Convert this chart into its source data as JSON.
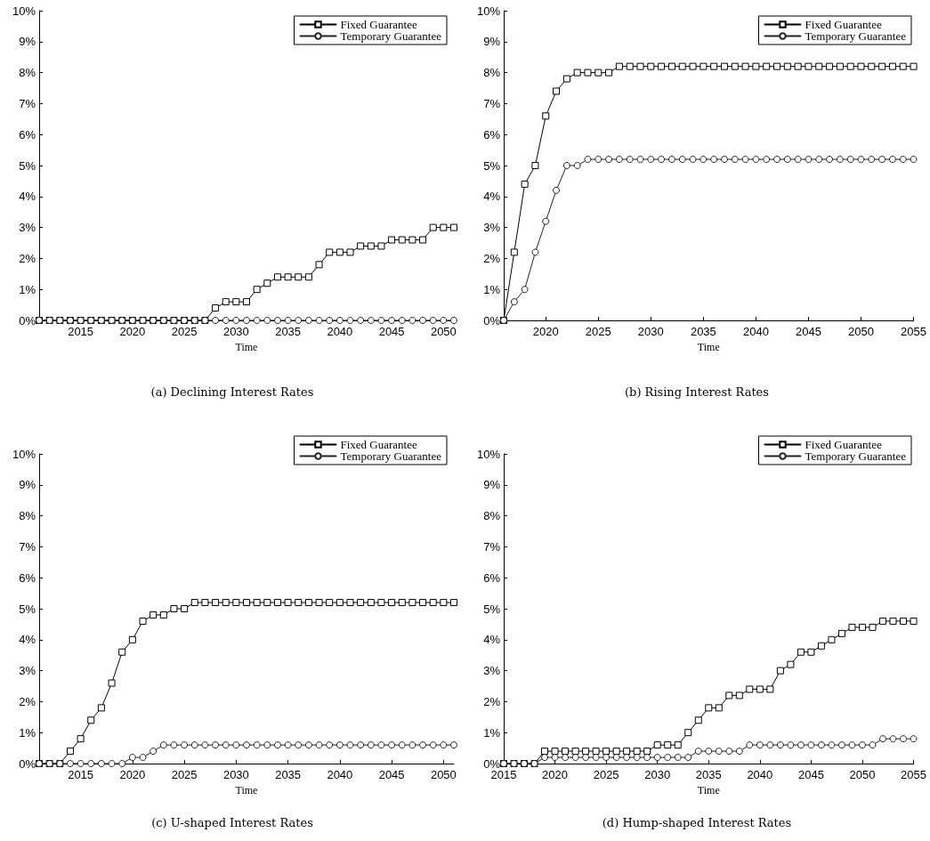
{
  "chart_data": [
    {
      "type": "line",
      "title": "(a) Declining Interest Rates",
      "xlabel": "Time",
      "legend": "top right",
      "grid": false,
      "line_style": "solid",
      "x": [
        2011,
        2012,
        2013,
        2014,
        2015,
        2016,
        2017,
        2018,
        2019,
        2020,
        2021,
        2022,
        2023,
        2024,
        2025,
        2026,
        2027,
        2028,
        2029,
        2030,
        2031,
        2032,
        2033,
        2034,
        2035,
        2036,
        2037,
        2038,
        2039,
        2040,
        2041,
        2042,
        2043,
        2044,
        2045,
        2046,
        2047,
        2048,
        2049,
        2050,
        2051
      ],
      "xlim": [
        2011,
        2051
      ],
      "xticks": [
        2015,
        2020,
        2025,
        2030,
        2035,
        2040,
        2045,
        2050
      ],
      "ylim": [
        0,
        10
      ],
      "yticks": [
        {
          "value": 0,
          "label": "0%"
        },
        {
          "value": 1,
          "label": "1%"
        },
        {
          "value": 2,
          "label": "2%"
        },
        {
          "value": 3,
          "label": "3%"
        },
        {
          "value": 4,
          "label": "4%"
        },
        {
          "value": 5,
          "label": "5%"
        },
        {
          "value": 6,
          "label": "6%"
        },
        {
          "value": 7,
          "label": "7%"
        },
        {
          "value": 8,
          "label": "8%"
        },
        {
          "value": 9,
          "label": "9%"
        },
        {
          "value": 10,
          "label": "10%"
        }
      ],
      "series": [
        {
          "name": "Fixed Guarantee",
          "color": "#000000",
          "marker": "square",
          "values": [
            0,
            0,
            0,
            0,
            0,
            0,
            0,
            0,
            0,
            0,
            0,
            0,
            0,
            0,
            0,
            0,
            0,
            0.4,
            0.6,
            0.6,
            0.6,
            1.0,
            1.2,
            1.4,
            1.4,
            1.4,
            1.4,
            1.8,
            2.2,
            2.2,
            2.2,
            2.4,
            2.4,
            2.4,
            2.6,
            2.6,
            2.6,
            2.6,
            3.0,
            3.0,
            3.0
          ]
        },
        {
          "name": "Temporary Guarantee",
          "color": "#222222",
          "marker": "circle",
          "values": [
            0,
            0,
            0,
            0,
            0,
            0,
            0,
            0,
            0,
            0,
            0,
            0,
            0,
            0,
            0,
            0,
            0,
            0,
            0,
            0,
            0,
            0,
            0,
            0,
            0,
            0,
            0,
            0,
            0,
            0,
            0,
            0,
            0,
            0,
            0,
            0,
            0,
            0,
            0,
            0,
            0
          ]
        }
      ]
    },
    {
      "type": "line",
      "title": "(b) Rising Interest Rates",
      "xlabel": "Time",
      "legend": "top right",
      "grid": false,
      "line_style": "solid",
      "x": [
        2016,
        2017,
        2018,
        2019,
        2020,
        2021,
        2022,
        2023,
        2024,
        2025,
        2026,
        2027,
        2028,
        2029,
        2030,
        2031,
        2032,
        2033,
        2034,
        2035,
        2036,
        2037,
        2038,
        2039,
        2040,
        2041,
        2042,
        2043,
        2044,
        2045,
        2046,
        2047,
        2048,
        2049,
        2050,
        2051,
        2052,
        2053,
        2054,
        2055
      ],
      "xlim": [
        2016,
        2055
      ],
      "xticks": [
        2020,
        2025,
        2030,
        2035,
        2040,
        2045,
        2050,
        2055
      ],
      "ylim": [
        0,
        10
      ],
      "yticks": [
        {
          "value": 0,
          "label": "0%"
        },
        {
          "value": 1,
          "label": "1%"
        },
        {
          "value": 2,
          "label": "2%"
        },
        {
          "value": 3,
          "label": "3%"
        },
        {
          "value": 4,
          "label": "4%"
        },
        {
          "value": 5,
          "label": "5%"
        },
        {
          "value": 6,
          "label": "6%"
        },
        {
          "value": 7,
          "label": "7%"
        },
        {
          "value": 8,
          "label": "8%"
        },
        {
          "value": 9,
          "label": "9%"
        },
        {
          "value": 10,
          "label": "10%"
        }
      ],
      "series": [
        {
          "name": "Fixed Guarantee",
          "color": "#000000",
          "marker": "square",
          "values": [
            0,
            2.2,
            4.4,
            5.0,
            6.6,
            7.4,
            7.8,
            8.0,
            8.0,
            8.0,
            8.0,
            8.2,
            8.2,
            8.2,
            8.2,
            8.2,
            8.2,
            8.2,
            8.2,
            8.2,
            8.2,
            8.2,
            8.2,
            8.2,
            8.2,
            8.2,
            8.2,
            8.2,
            8.2,
            8.2,
            8.2,
            8.2,
            8.2,
            8.2,
            8.2,
            8.2,
            8.2,
            8.2,
            8.2,
            8.2
          ]
        },
        {
          "name": "Temporary Guarantee",
          "color": "#222222",
          "marker": "circle",
          "values": [
            0,
            0.6,
            1.0,
            2.2,
            3.2,
            4.2,
            5.0,
            5.0,
            5.2,
            5.2,
            5.2,
            5.2,
            5.2,
            5.2,
            5.2,
            5.2,
            5.2,
            5.2,
            5.2,
            5.2,
            5.2,
            5.2,
            5.2,
            5.2,
            5.2,
            5.2,
            5.2,
            5.2,
            5.2,
            5.2,
            5.2,
            5.2,
            5.2,
            5.2,
            5.2,
            5.2,
            5.2,
            5.2,
            5.2,
            5.2
          ]
        }
      ]
    },
    {
      "type": "line",
      "title": "(c) U-shaped Interest Rates",
      "xlabel": "Time",
      "legend": "top right",
      "grid": false,
      "line_style": "solid",
      "x": [
        2011,
        2012,
        2013,
        2014,
        2015,
        2016,
        2017,
        2018,
        2019,
        2020,
        2021,
        2022,
        2023,
        2024,
        2025,
        2026,
        2027,
        2028,
        2029,
        2030,
        2031,
        2032,
        2033,
        2034,
        2035,
        2036,
        2037,
        2038,
        2039,
        2040,
        2041,
        2042,
        2043,
        2044,
        2045,
        2046,
        2047,
        2048,
        2049,
        2050,
        2051
      ],
      "xlim": [
        2011,
        2051
      ],
      "xticks": [
        2015,
        2020,
        2025,
        2030,
        2035,
        2040,
        2045,
        2050
      ],
      "ylim": [
        0,
        10
      ],
      "yticks": [
        {
          "value": 0,
          "label": "0%"
        },
        {
          "value": 1,
          "label": "1%"
        },
        {
          "value": 2,
          "label": "2%"
        },
        {
          "value": 3,
          "label": "3%"
        },
        {
          "value": 4,
          "label": "4%"
        },
        {
          "value": 5,
          "label": "5%"
        },
        {
          "value": 6,
          "label": "6%"
        },
        {
          "value": 7,
          "label": "7%"
        },
        {
          "value": 8,
          "label": "8%"
        },
        {
          "value": 9,
          "label": "9%"
        },
        {
          "value": 10,
          "label": "10%"
        }
      ],
      "series": [
        {
          "name": "Fixed Guarantee",
          "color": "#000000",
          "marker": "square",
          "values": [
            0,
            0,
            0,
            0.4,
            0.8,
            1.4,
            1.8,
            2.6,
            3.6,
            4.0,
            4.6,
            4.8,
            4.8,
            5.0,
            5.0,
            5.2,
            5.2,
            5.2,
            5.2,
            5.2,
            5.2,
            5.2,
            5.2,
            5.2,
            5.2,
            5.2,
            5.2,
            5.2,
            5.2,
            5.2,
            5.2,
            5.2,
            5.2,
            5.2,
            5.2,
            5.2,
            5.2,
            5.2,
            5.2,
            5.2,
            5.2
          ]
        },
        {
          "name": "Temporary Guarantee",
          "color": "#222222",
          "marker": "circle",
          "values": [
            0,
            0,
            0,
            0,
            0,
            0,
            0,
            0,
            0,
            0.2,
            0.2,
            0.4,
            0.6,
            0.6,
            0.6,
            0.6,
            0.6,
            0.6,
            0.6,
            0.6,
            0.6,
            0.6,
            0.6,
            0.6,
            0.6,
            0.6,
            0.6,
            0.6,
            0.6,
            0.6,
            0.6,
            0.6,
            0.6,
            0.6,
            0.6,
            0.6,
            0.6,
            0.6,
            0.6,
            0.6,
            0.6
          ]
        }
      ]
    },
    {
      "type": "line",
      "title": "(d) Hump-shaped Interest Rates",
      "xlabel": "Time",
      "legend": "top right",
      "grid": false,
      "line_style": "solid",
      "x": [
        2015,
        2016,
        2017,
        2018,
        2019,
        2020,
        2021,
        2022,
        2023,
        2024,
        2025,
        2026,
        2027,
        2028,
        2029,
        2030,
        2031,
        2032,
        2033,
        2034,
        2035,
        2036,
        2037,
        2038,
        2039,
        2040,
        2041,
        2042,
        2043,
        2044,
        2045,
        2046,
        2047,
        2048,
        2049,
        2050,
        2051,
        2052,
        2053,
        2054,
        2055
      ],
      "xlim": [
        2015,
        2055
      ],
      "xticks": [
        2015,
        2020,
        2025,
        2030,
        2035,
        2040,
        2045,
        2050,
        2055
      ],
      "ylim": [
        0,
        10
      ],
      "yticks": [
        {
          "value": 0,
          "label": "0%"
        },
        {
          "value": 1,
          "label": "1%"
        },
        {
          "value": 2,
          "label": "2%"
        },
        {
          "value": 3,
          "label": "3%"
        },
        {
          "value": 4,
          "label": "4%"
        },
        {
          "value": 5,
          "label": "5%"
        },
        {
          "value": 6,
          "label": "6%"
        },
        {
          "value": 7,
          "label": "7%"
        },
        {
          "value": 8,
          "label": "8%"
        },
        {
          "value": 9,
          "label": "9%"
        },
        {
          "value": 10,
          "label": "10%"
        }
      ],
      "series": [
        {
          "name": "Fixed Guarantee",
          "color": "#000000",
          "marker": "square",
          "values": [
            0,
            0,
            0,
            0,
            0.4,
            0.4,
            0.4,
            0.4,
            0.4,
            0.4,
            0.4,
            0.4,
            0.4,
            0.4,
            0.4,
            0.6,
            0.6,
            0.6,
            1.0,
            1.4,
            1.8,
            1.8,
            2.2,
            2.2,
            2.4,
            2.4,
            2.4,
            3.0,
            3.2,
            3.6,
            3.6,
            3.8,
            4.0,
            4.2,
            4.4,
            4.4,
            4.4,
            4.6,
            4.6,
            4.6,
            4.6
          ]
        },
        {
          "name": "Temporary Guarantee",
          "color": "#222222",
          "marker": "circle",
          "values": [
            0,
            0,
            0,
            0,
            0.2,
            0.2,
            0.2,
            0.2,
            0.2,
            0.2,
            0.2,
            0.2,
            0.2,
            0.2,
            0.2,
            0.2,
            0.2,
            0.2,
            0.2,
            0.4,
            0.4,
            0.4,
            0.4,
            0.4,
            0.6,
            0.6,
            0.6,
            0.6,
            0.6,
            0.6,
            0.6,
            0.6,
            0.6,
            0.6,
            0.6,
            0.6,
            0.6,
            0.8,
            0.8,
            0.8,
            0.8
          ]
        }
      ]
    }
  ]
}
